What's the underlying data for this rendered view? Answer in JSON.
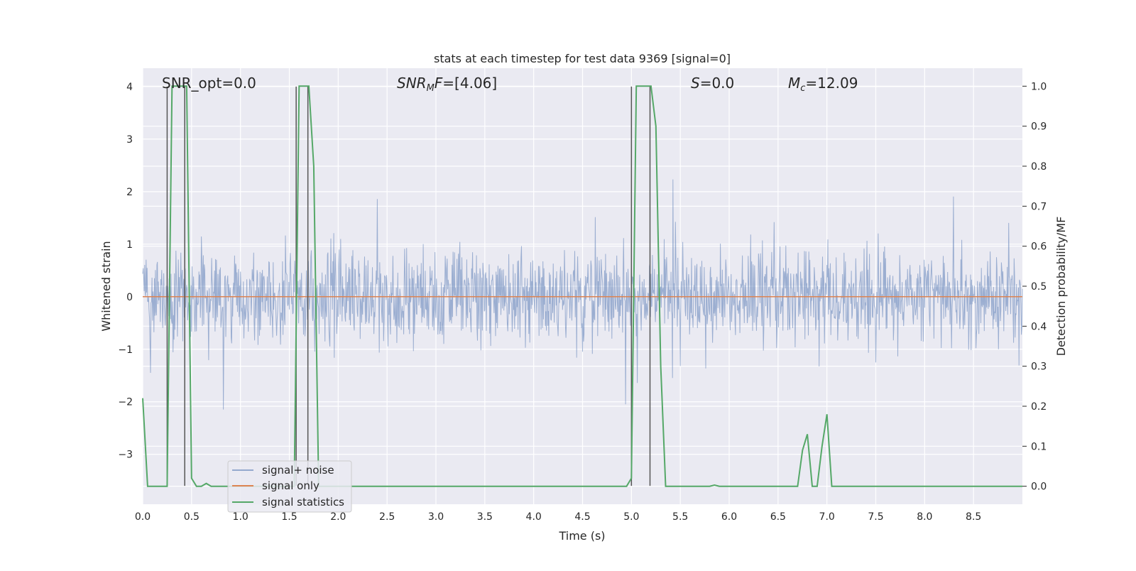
{
  "chart_data": {
    "type": "line",
    "title": "stats at each timestep for test data 9369 [signal=0]",
    "xlabel": "Time (s)",
    "ylabel": "Whitened strain",
    "ylabel_right": "Detection probability/MF",
    "xlim": [
      0,
      9.0
    ],
    "ylim": [
      -3.95,
      4.35
    ],
    "ylim_right": [
      -0.045,
      1.045
    ],
    "grid": true,
    "legend_position": "lower-left",
    "x_ticks": [
      "0.0",
      "0.5",
      "1.0",
      "1.5",
      "2.0",
      "2.5",
      "3.0",
      "3.5",
      "4.0",
      "4.5",
      "5.0",
      "5.5",
      "6.0",
      "6.5",
      "7.0",
      "7.5",
      "8.0",
      "8.5"
    ],
    "y_ticks": [
      "4",
      "3",
      "2",
      "1",
      "0",
      "−1",
      "−2",
      "−3"
    ],
    "y_right_ticks": [
      "1.0",
      "0.9",
      "0.8",
      "0.7",
      "0.6",
      "0.5",
      "0.4",
      "0.3",
      "0.2",
      "0.1",
      "0.0"
    ],
    "annotations": [
      {
        "id": "snr-opt",
        "text": "SNR_opt=0.0"
      },
      {
        "id": "snr-mf",
        "text": "SNR",
        "sub": "M",
        "rest": "F=[4.06]"
      },
      {
        "id": "s-val",
        "text": "S",
        "rest": "=0.0"
      },
      {
        "id": "mc-val",
        "text": "M",
        "sub": "c",
        "rest": "=12.09"
      }
    ],
    "series": [
      {
        "name": "signal+ noise",
        "color": "#4c72b0",
        "axis": "left",
        "description_hint": "dense whitened noise, amplitude roughly within ±2.5 with peaks to ±4"
      },
      {
        "name": "signal only",
        "color": "#dd8452",
        "axis": "left",
        "x": [
          0,
          9.0
        ],
        "y": [
          0,
          0
        ]
      },
      {
        "name": "signal statistics",
        "color": "#55a868",
        "axis": "right",
        "x": [
          0.0,
          0.05,
          0.1,
          0.15,
          0.2,
          0.25,
          0.3,
          0.35,
          0.4,
          0.45,
          0.5,
          0.55,
          0.6,
          0.65,
          0.7,
          0.75,
          0.8,
          1.5,
          1.55,
          1.6,
          1.65,
          1.7,
          1.75,
          1.8,
          1.85,
          1.9,
          4.95,
          5.0,
          5.05,
          5.1,
          5.15,
          5.2,
          5.25,
          5.3,
          5.35,
          5.4,
          5.5,
          5.8,
          5.85,
          5.9,
          6.6,
          6.65,
          6.7,
          6.75,
          6.8,
          6.85,
          6.9,
          6.95,
          7.0,
          7.05,
          7.1,
          9.0
        ],
        "y": [
          0.22,
          0.0,
          0.0,
          0.0,
          0.0,
          0.0,
          1.0,
          1.0,
          1.0,
          1.0,
          0.02,
          0.0,
          0.0,
          0.007,
          0.0,
          0.0,
          0.0,
          0.0,
          0.0,
          1.0,
          1.0,
          1.0,
          0.8,
          0.0,
          0.0,
          0.0,
          0.0,
          0.02,
          1.0,
          1.0,
          1.0,
          1.0,
          0.9,
          0.3,
          0.0,
          0.0,
          0.0,
          0.0,
          0.003,
          0.0,
          0.0,
          0.0,
          0.0,
          0.09,
          0.13,
          0.0,
          0.0,
          0.1,
          0.18,
          0.0,
          0.0,
          0.0
        ]
      }
    ],
    "vertical_lines": [
      {
        "x": 0.25,
        "y_from": -3.6,
        "y_to": 4.0
      },
      {
        "x": 0.43,
        "y_from": -3.6,
        "y_to": 4.0
      },
      {
        "x": 1.57,
        "y_from": -3.6,
        "y_to": 4.0
      },
      {
        "x": 1.69,
        "y_from": -3.6,
        "y_to": 4.0
      },
      {
        "x": 5.0,
        "y_from": -3.6,
        "y_to": 4.0
      },
      {
        "x": 5.19,
        "y_from": -3.6,
        "y_to": 4.0
      }
    ],
    "legend": [
      {
        "label": "signal+ noise",
        "color": "#4c72b0"
      },
      {
        "label": "signal only",
        "color": "#dd8452"
      },
      {
        "label": "signal statistics",
        "color": "#55a868"
      }
    ]
  }
}
